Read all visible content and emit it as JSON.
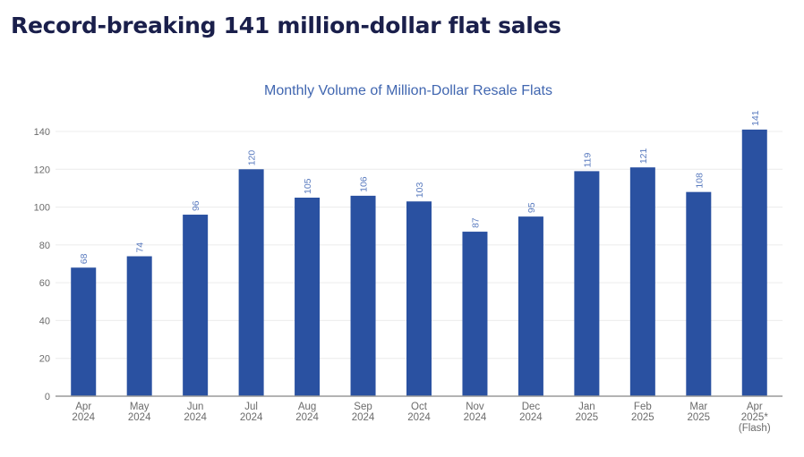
{
  "page": {
    "headline": "Record-breaking 141 million-dollar flat sales"
  },
  "chart_data": {
    "type": "bar",
    "title": "Monthly Volume of Million-Dollar Resale Flats",
    "xlabel": "",
    "ylabel": "",
    "ylim": [
      0,
      140
    ],
    "yticks": [
      0,
      20,
      40,
      60,
      80,
      100,
      120,
      140
    ],
    "grid": true,
    "legend": "none",
    "bar_color": "#2a51a1",
    "categories": [
      [
        "Apr",
        "2024"
      ],
      [
        "May",
        "2024"
      ],
      [
        "Jun",
        "2024"
      ],
      [
        "Jul",
        "2024"
      ],
      [
        "Aug",
        "2024"
      ],
      [
        "Sep",
        "2024"
      ],
      [
        "Oct",
        "2024"
      ],
      [
        "Nov",
        "2024"
      ],
      [
        "Dec",
        "2024"
      ],
      [
        "Jan",
        "2025"
      ],
      [
        "Feb",
        "2025"
      ],
      [
        "Mar",
        "2025"
      ],
      [
        "Apr",
        "2025*",
        "(Flash)"
      ]
    ],
    "values": [
      68,
      74,
      96,
      120,
      105,
      106,
      103,
      87,
      95,
      119,
      121,
      108,
      141
    ],
    "data_labels": true,
    "data_label_orientation": "vertical"
  }
}
